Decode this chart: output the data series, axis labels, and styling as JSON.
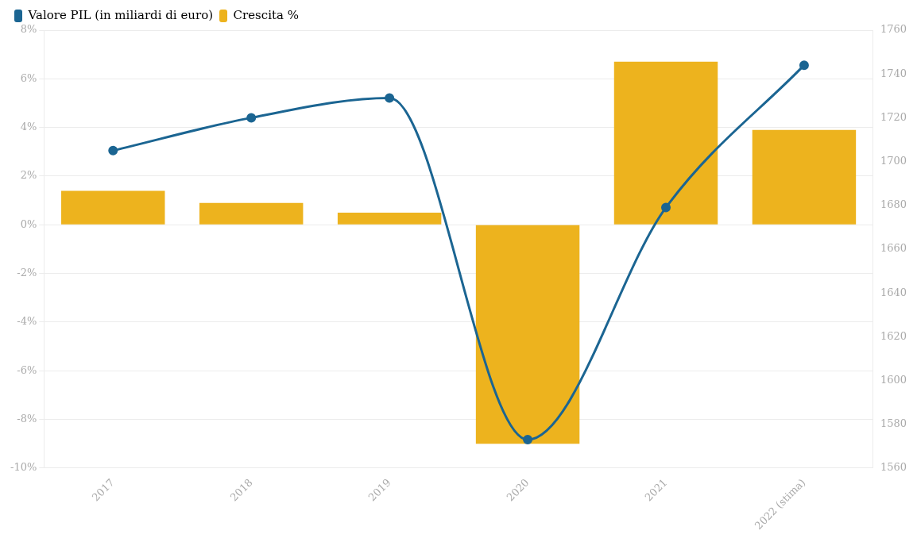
{
  "chart_data": {
    "type": "bar",
    "categories": [
      "2017",
      "2018",
      "2019",
      "2020",
      "2021",
      "2022 (stima)"
    ],
    "series": [
      {
        "name": "Valore PIL (in miliardi di euro)",
        "type": "line",
        "axis": "y2",
        "color": "#1b6592",
        "values": [
          1705,
          1720,
          1729,
          1573,
          1679,
          1744
        ]
      },
      {
        "name": "Crescita %",
        "color": "#edb31e",
        "values": [
          1.4,
          0.9,
          0.5,
          -9.0,
          6.7,
          3.9
        ]
      }
    ],
    "ylim": [
      -10,
      8
    ],
    "yticks": [
      {
        "value": -10,
        "label": "-10%"
      },
      {
        "value": -8,
        "label": "-8%"
      },
      {
        "value": -6,
        "label": "-6%"
      },
      {
        "value": -4,
        "label": "-4%"
      },
      {
        "value": -2,
        "label": "-2%"
      },
      {
        "value": 0,
        "label": "0%"
      },
      {
        "value": 2,
        "label": "2%"
      },
      {
        "value": 4,
        "label": "4%"
      },
      {
        "value": 6,
        "label": "6%"
      },
      {
        "value": 8,
        "label": "8%"
      }
    ],
    "y2lim": [
      1560,
      1760
    ],
    "y2ticks": [
      1560,
      1580,
      1600,
      1620,
      1640,
      1660,
      1680,
      1700,
      1720,
      1740,
      1760
    ],
    "grid": "y",
    "legend": "top left",
    "marker": "circle"
  }
}
